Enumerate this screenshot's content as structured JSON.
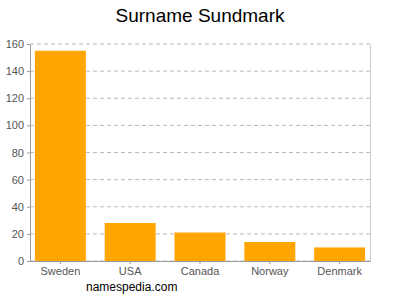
{
  "chart_data": {
    "type": "bar",
    "title": "Surname Sundmark",
    "categories": [
      "Sweden",
      "USA",
      "Canada",
      "Norway",
      "Denmark"
    ],
    "values": [
      155,
      28,
      21,
      14,
      10
    ],
    "color": "#ffa500",
    "ylim": [
      0,
      160
    ],
    "yticks": [
      0,
      20,
      40,
      60,
      80,
      100,
      120,
      140,
      160
    ],
    "grid": true,
    "annotations": [
      "namespedia.com"
    ]
  }
}
